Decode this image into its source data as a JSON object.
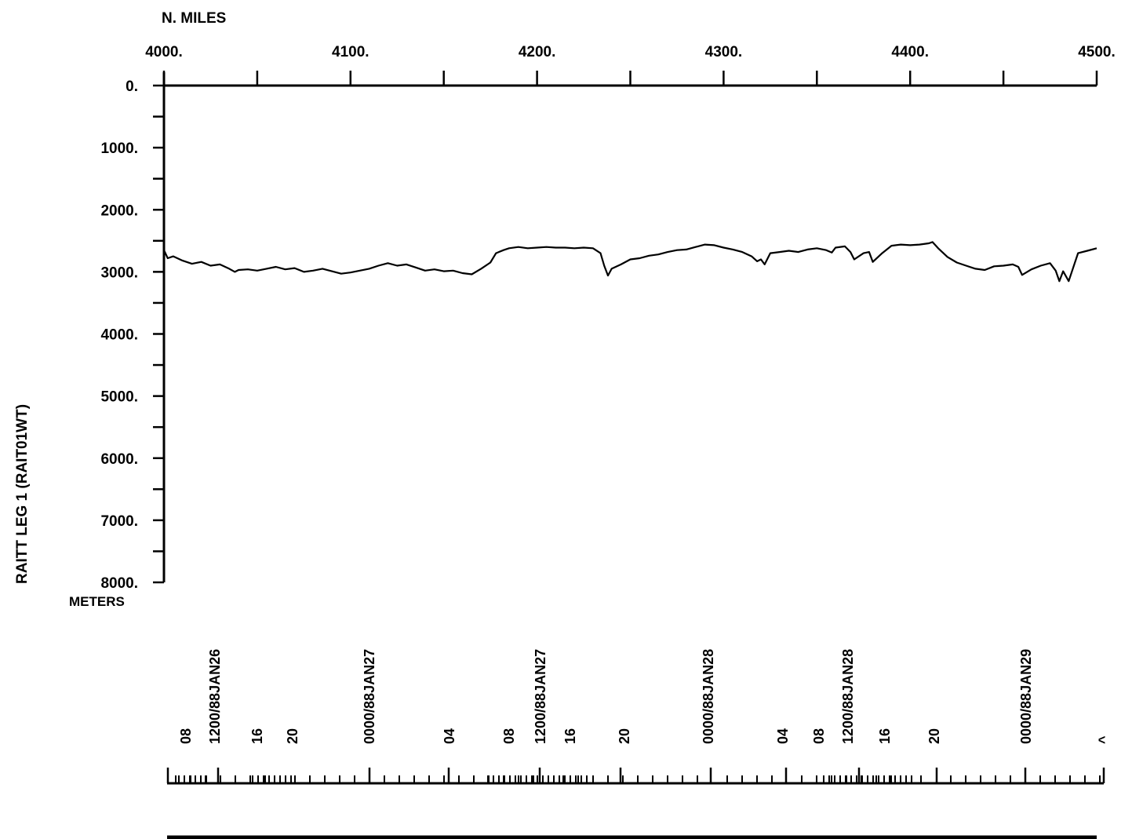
{
  "chart_data": {
    "type": "line",
    "title": "",
    "xlabel": "N. MILES",
    "ylabel": "RAITT LEG 1  (RAIT01WT)",
    "yunit": "METERS",
    "xlim": [
      4000,
      4500
    ],
    "ylim": [
      0,
      8000
    ],
    "y_inverted": true,
    "x_major_ticks": [
      4000,
      4100,
      4200,
      4300,
      4400,
      4500
    ],
    "x_tick_labels": [
      "4000.",
      "4100.",
      "4200.",
      "4300.",
      "4400.",
      "4500."
    ],
    "x_minor_ticks": [
      4050,
      4150,
      4250,
      4350,
      4450
    ],
    "y_major_ticks": [
      0,
      1000,
      2000,
      3000,
      4000,
      5000,
      6000,
      7000,
      8000
    ],
    "y_tick_labels": [
      "0.",
      "1000.",
      "2000.",
      "3000.",
      "4000.",
      "5000.",
      "6000.",
      "7000.",
      "8000."
    ],
    "y_minor_ticks": [
      500,
      1500,
      2500,
      3500,
      4500,
      5500,
      6500,
      7500
    ],
    "grid": false,
    "series": [
      {
        "x": [
          4000,
          4002,
          4005,
          4010,
          4015,
          4020,
          4025,
          4030,
          4035,
          4038,
          4040,
          4045,
          4050,
          4055,
          4060,
          4065,
          4070,
          4075,
          4080,
          4085,
          4090,
          4095,
          4100,
          4105,
          4110,
          4115,
          4120,
          4125,
          4130,
          4135,
          4140,
          4145,
          4150,
          4155,
          4160,
          4165,
          4170,
          4175,
          4178,
          4182,
          4185,
          4190,
          4195,
          4200,
          4205,
          4210,
          4215,
          4220,
          4225,
          4230,
          4234,
          4236,
          4238,
          4240,
          4245,
          4250,
          4255,
          4260,
          4265,
          4270,
          4275,
          4280,
          4285,
          4290,
          4295,
          4300,
          4305,
          4310,
          4315,
          4318,
          4320,
          4322,
          4325,
          4330,
          4335,
          4340,
          4345,
          4350,
          4355,
          4358,
          4360,
          4365,
          4368,
          4370,
          4375,
          4378,
          4380,
          4385,
          4390,
          4395,
          4400,
          4405,
          4410,
          4412,
          4415,
          4420,
          4425,
          4430,
          4435,
          4440,
          4445,
          4450,
          4455,
          4458,
          4460,
          4465,
          4470,
          4475,
          4478,
          4480,
          4482,
          4485,
          4490,
          4495,
          4500
        ],
        "y": [
          2650,
          2780,
          2750,
          2820,
          2870,
          2840,
          2900,
          2880,
          2950,
          3000,
          2970,
          2960,
          2980,
          2950,
          2920,
          2960,
          2940,
          3000,
          2980,
          2950,
          2990,
          3030,
          3010,
          2980,
          2950,
          2900,
          2860,
          2900,
          2880,
          2930,
          2980,
          2960,
          2990,
          2980,
          3020,
          3040,
          2950,
          2850,
          2700,
          2650,
          2620,
          2600,
          2620,
          2610,
          2600,
          2610,
          2610,
          2620,
          2610,
          2620,
          2700,
          2900,
          3060,
          2950,
          2880,
          2800,
          2780,
          2740,
          2720,
          2680,
          2650,
          2640,
          2600,
          2560,
          2570,
          2610,
          2640,
          2680,
          2750,
          2830,
          2800,
          2880,
          2700,
          2680,
          2660,
          2680,
          2640,
          2620,
          2650,
          2690,
          2610,
          2590,
          2680,
          2800,
          2700,
          2680,
          2840,
          2700,
          2580,
          2560,
          2570,
          2560,
          2540,
          2520,
          2620,
          2760,
          2850,
          2900,
          2950,
          2970,
          2910,
          2900,
          2880,
          2920,
          3050,
          2960,
          2900,
          2860,
          2980,
          3150,
          2990,
          3150,
          2700,
          2660,
          2620
        ]
      }
    ],
    "time_labels": [
      "08",
      "1200/88JAN26",
      "16",
      "20",
      "0000/88JAN27",
      "04",
      "08",
      "1200/88JAN27",
      "16",
      "20",
      "0000/88JAN28",
      "04",
      "08",
      "1200/88JAN28",
      "16",
      "20",
      "0000/88JAN29"
    ]
  }
}
